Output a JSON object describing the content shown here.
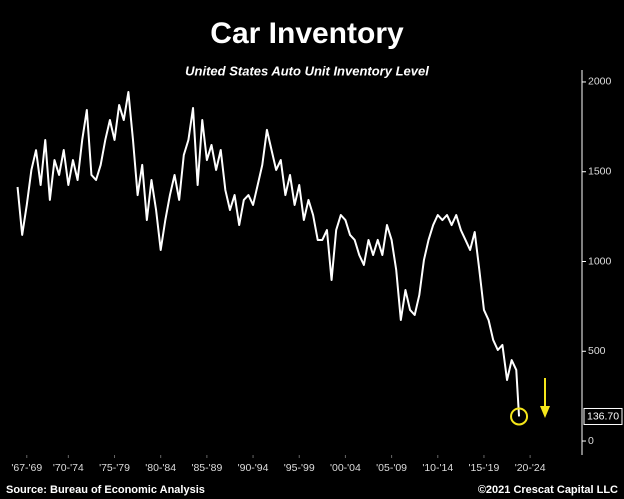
{
  "chart_data": {
    "type": "line",
    "title": "Car Inventory",
    "subtitle": "United States Auto Unit Inventory Level",
    "source": "Source: Bureau of Economic Analysis",
    "credit": "©2021 Crescat Capital LLC",
    "xlim": [
      1965.1,
      2027.9
    ],
    "xticks": [
      {
        "value": 1968,
        "label": "'67-'69"
      },
      {
        "value": 1972.5,
        "label": "'70-'74"
      },
      {
        "value": 1977.5,
        "label": "'75-'79"
      },
      {
        "value": 1982.5,
        "label": "'80-'84"
      },
      {
        "value": 1987.5,
        "label": "'85-'89"
      },
      {
        "value": 1992.5,
        "label": "'90-'94"
      },
      {
        "value": 1997.5,
        "label": "'95-'99"
      },
      {
        "value": 2002.5,
        "label": "'00-'04"
      },
      {
        "value": 2007.5,
        "label": "'05-'09"
      },
      {
        "value": 2012.5,
        "label": "'10-'14"
      },
      {
        "value": 2017.5,
        "label": "'15-'19"
      },
      {
        "value": 2022.5,
        "label": "'20-'24"
      }
    ],
    "ylim": [
      -60,
      2070
    ],
    "yticks": [
      0,
      500,
      1000,
      1500,
      2000
    ],
    "y_axis_side": "right",
    "grid": false,
    "series": [
      {
        "name": "United States Auto Unit Inventory Level",
        "color": "#ffffff",
        "x": [
          1967.0,
          1967.5,
          1968.0,
          1968.5,
          1969.0,
          1969.5,
          1970.0,
          1970.5,
          1971.0,
          1971.5,
          1972.0,
          1972.5,
          1973.0,
          1973.5,
          1974.0,
          1974.5,
          1975.0,
          1975.5,
          1976.0,
          1976.5,
          1977.0,
          1977.5,
          1978.0,
          1978.5,
          1979.0,
          1979.5,
          1980.0,
          1980.5,
          1981.0,
          1981.5,
          1982.0,
          1982.5,
          1983.0,
          1983.5,
          1984.0,
          1984.5,
          1985.0,
          1985.5,
          1986.0,
          1986.5,
          1987.0,
          1987.5,
          1988.0,
          1988.5,
          1989.0,
          1989.5,
          1990.0,
          1990.5,
          1991.0,
          1991.5,
          1992.0,
          1992.5,
          1993.0,
          1993.5,
          1994.0,
          1994.5,
          1995.0,
          1995.5,
          1996.0,
          1996.5,
          1997.0,
          1997.5,
          1998.0,
          1998.5,
          1999.0,
          1999.5,
          2000.0,
          2000.5,
          2001.0,
          2001.5,
          2002.0,
          2002.5,
          2003.0,
          2003.5,
          2004.0,
          2004.5,
          2005.0,
          2005.5,
          2006.0,
          2006.5,
          2007.0,
          2007.5,
          2008.0,
          2008.5,
          2009.0,
          2009.5,
          2010.0,
          2010.5,
          2011.0,
          2011.5,
          2012.0,
          2012.5,
          2013.0,
          2013.5,
          2014.0,
          2014.5,
          2015.0,
          2015.5,
          2016.0,
          2016.5,
          2017.0,
          2017.5,
          2018.0,
          2018.5,
          2019.0,
          2019.5,
          2020.0,
          2020.5,
          2021.0,
          2021.3
        ],
        "values": [
          1415,
          1148,
          1315,
          1510,
          1620,
          1426,
          1677,
          1343,
          1565,
          1482,
          1621,
          1426,
          1565,
          1454,
          1677,
          1844,
          1482,
          1454,
          1538,
          1677,
          1788,
          1677,
          1872,
          1788,
          1944,
          1677,
          1370,
          1538,
          1231,
          1454,
          1287,
          1064,
          1231,
          1370,
          1482,
          1343,
          1593,
          1677,
          1855,
          1426,
          1788,
          1565,
          1649,
          1510,
          1621,
          1398,
          1287,
          1370,
          1203,
          1343,
          1370,
          1315,
          1426,
          1538,
          1733,
          1621,
          1510,
          1565,
          1370,
          1482,
          1315,
          1426,
          1231,
          1343,
          1259,
          1120,
          1120,
          1175,
          897,
          1175,
          1259,
          1231,
          1148,
          1120,
          1036,
          981,
          1120,
          1036,
          1120,
          1036,
          1203,
          1120,
          953,
          674,
          841,
          730,
          702,
          813,
          1008,
          1120,
          1203,
          1259,
          1231,
          1259,
          1203,
          1259,
          1175,
          1120,
          1064,
          1164,
          953,
          730,
          674,
          563,
          507,
          535,
          340,
          451,
          396,
          136.7
        ]
      }
    ],
    "last_value": {
      "value": 136.7,
      "label": "136.70"
    },
    "highlight_color": "#f5e61a"
  }
}
